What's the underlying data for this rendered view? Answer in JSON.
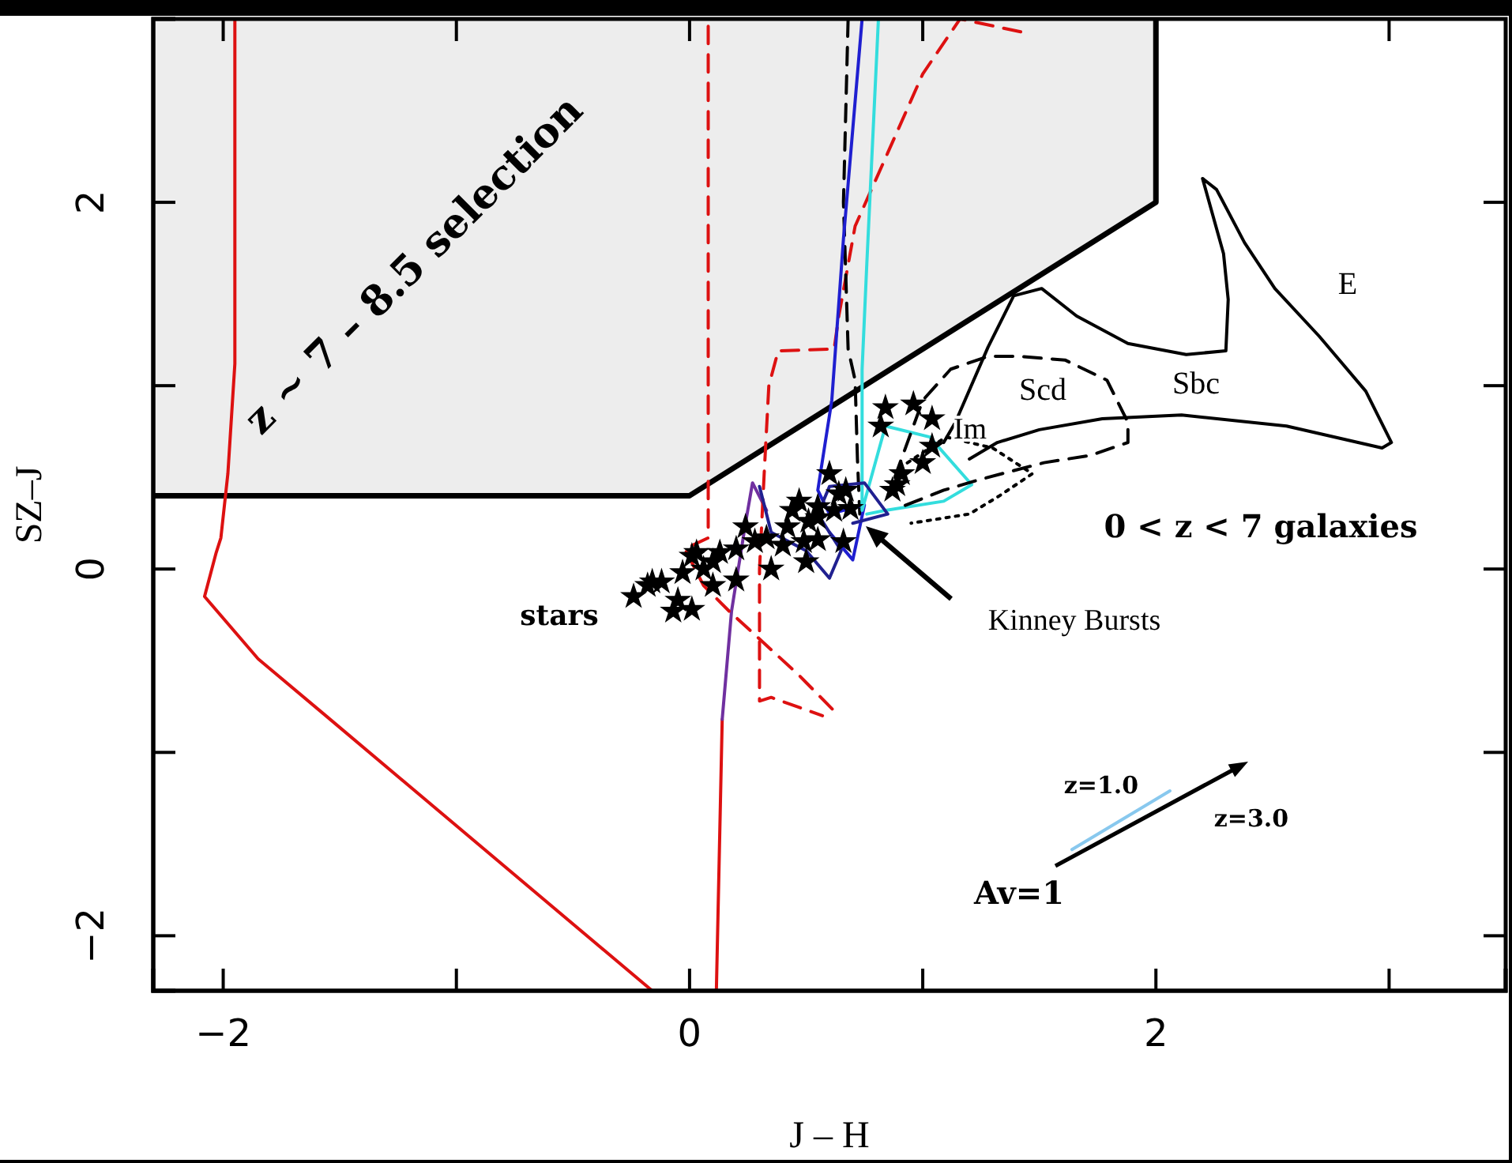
{
  "chart_data": {
    "type": "line",
    "xlabel": "J – H",
    "ylabel": "SZ–J",
    "xlim": [
      -2.3,
      3.5
    ],
    "ylim": [
      -2.3,
      3
    ],
    "xticks": [
      {
        "value": -2,
        "label": "−2"
      },
      {
        "value": -1,
        "label": null
      },
      0,
      {
        "value": 1,
        "label": null
      },
      2,
      {
        "value": 3,
        "label": null
      }
    ],
    "yticks": [
      {
        "value": -2,
        "label": "−2"
      },
      {
        "value": -1,
        "label": null
      },
      0,
      {
        "value": 1,
        "label": null
      },
      2
    ],
    "grid": false,
    "series": [
      {
        "color": "#000000",
        "x": [
          -2.3,
          0,
          2,
          2
        ],
        "values": [
          0.4,
          0.4,
          2,
          3
        ],
        "lower": [
          0.4,
          0.4,
          2,
          3
        ],
        "upper": [
          3,
          3,
          3,
          3
        ],
        "line_style": "solid",
        "marker": "none"
      },
      {
        "color": "#dd1111",
        "x": [
          -1.95,
          -1.95,
          -1.98,
          -2.01,
          -2.03,
          -2.08,
          -1.85,
          -1.56,
          -0.16
        ],
        "values": [
          3,
          1.12,
          0.52,
          0.17,
          0.09,
          -0.15,
          -0.49,
          -0.8,
          -2.3
        ],
        "line_style": "solid",
        "marker": "none"
      },
      {
        "color": "#dd1111",
        "x": [
          0.115,
          0.14
        ],
        "values": [
          -2.3,
          -0.82
        ],
        "line_style": "solid",
        "marker": "none"
      },
      {
        "color": "#7030a0",
        "x": [
          0.14,
          0.18,
          0.24,
          0.27,
          0.33
        ],
        "values": [
          -0.82,
          -0.23,
          0.25,
          0.47,
          0.32
        ],
        "line_style": "solid",
        "marker": "none"
      },
      {
        "color": "#dd1111",
        "x": [
          0.08,
          0.08,
          0.08,
          -0.02,
          0.06,
          0.17,
          0.47,
          0.64
        ],
        "values": [
          2.96,
          1.5,
          0.17,
          0.11,
          -0.09,
          -0.23,
          -0.58,
          -0.8
        ],
        "line_style": "dashed",
        "marker": "none"
      },
      {
        "color": "#dd1111",
        "x": [
          1.42,
          1.16,
          1.0,
          0.85,
          0.71,
          0.64,
          0.62,
          0.38,
          0.34,
          0.32,
          0.3,
          0.3,
          0.35,
          0.57
        ],
        "values": [
          2.93,
          3,
          2.7,
          2.27,
          1.87,
          1.38,
          1.2,
          1.19,
          1.0,
          0.52,
          0,
          -0.72,
          -0.7,
          -0.8
        ],
        "line_style": "dashed",
        "marker": "none"
      },
      {
        "color": "#000000",
        "x": [
          0.68,
          0.66,
          0.68,
          0.71,
          0.72,
          0.73
        ],
        "values": [
          3,
          2,
          1.2,
          1.03,
          0.6,
          0.3
        ],
        "line_style": "dashed",
        "marker": "none"
      },
      {
        "color": "#1f1fd0",
        "x": [
          0.74,
          0.66,
          0.61,
          0.55,
          0.6,
          0.75,
          0.7,
          0.6
        ],
        "values": [
          3,
          1.8,
          0.92,
          0.43,
          0.3,
          0.35,
          0.05,
          0.2
        ],
        "line_style": "solid",
        "marker": "none"
      },
      {
        "color": "#33dddd",
        "x": [
          0.81,
          0.76,
          0.74,
          0.74,
          0.84,
          1.03,
          1.21,
          1.09,
          0.84,
          0.76
        ],
        "values": [
          3,
          1.66,
          1.09,
          0.32,
          0.78,
          0.72,
          0.46,
          0.37,
          0.32,
          0.3
        ],
        "line_style": "solid",
        "marker": "none"
      },
      {
        "color": "#202090",
        "x": [
          0.3,
          0.35,
          0.5,
          0.6,
          0.65,
          0.55,
          0.6,
          0.75,
          0.85,
          0.7
        ],
        "values": [
          0.45,
          0.2,
          0.1,
          -0.05,
          0.1,
          0.3,
          0.45,
          0.47,
          0.3,
          0.25
        ],
        "line_style": "solid",
        "marker": "none"
      },
      {
        "color": "#000000",
        "x": [
          1.09,
          1.14,
          1.28,
          1.39,
          1.51,
          1.66,
          1.88,
          2.13,
          2.3,
          2.31,
          2.29,
          2.2,
          2.26,
          2.38,
          2.51,
          2.7,
          2.9,
          3.01,
          2.97,
          2.56,
          2.11,
          1.77,
          1.5,
          1.32,
          1.2
        ],
        "values": [
          0.69,
          0.8,
          1.21,
          1.49,
          1.53,
          1.38,
          1.23,
          1.17,
          1.19,
          1.47,
          1.72,
          2.13,
          2.07,
          1.78,
          1.53,
          1.27,
          0.97,
          0.69,
          0.66,
          0.78,
          0.84,
          0.82,
          0.76,
          0.69,
          0.6
        ],
        "line_style": "solid",
        "marker": "none"
      },
      {
        "color": "#000000",
        "x": [
          0.88,
          1.0,
          1.12,
          1.28,
          1.41,
          1.61,
          1.79,
          1.88,
          1.88,
          1.72,
          1.52,
          1.25,
          1.09,
          0.91
        ],
        "values": [
          0.5,
          0.92,
          1.09,
          1.16,
          1.16,
          1.14,
          1.03,
          0.8,
          0.69,
          0.62,
          0.58,
          0.49,
          0.43,
          0.34
        ],
        "line_style": "dashed",
        "marker": "none"
      },
      {
        "color": "#000000",
        "x": [
          0.9,
          1.1,
          1.3,
          1.47,
          1.33,
          1.2,
          0.95
        ],
        "values": [
          0.55,
          0.72,
          0.66,
          0.52,
          0.4,
          0.3,
          0.25
        ],
        "line_style": "dotted",
        "marker": "none"
      },
      {
        "color": "#88c8ee",
        "x": [
          1.64,
          2.06
        ],
        "values": [
          -1.53,
          -1.21
        ],
        "line_style": "solid",
        "marker": "none"
      },
      {
        "type": "scatter",
        "color": "#000000",
        "marker": "star",
        "x": [
          -0.24,
          -0.18,
          -0.12,
          -0.07,
          0.01,
          -0.03,
          0.06,
          0.1,
          0.13,
          0.2,
          0.2,
          0.24,
          0.28,
          0.33,
          0.35,
          0.4,
          0.44,
          0.47,
          0.51,
          0.55,
          0.5,
          0.55,
          0.64,
          0.66,
          0.69,
          0.62,
          0.91,
          0.87,
          1.0,
          0.01,
          0.1,
          -0.05,
          -0.16,
          0.03,
          0.84,
          0.96,
          1.04,
          0.82,
          1.04,
          0.89,
          0.6,
          0.67,
          0.55,
          0.49,
          0.42
        ],
        "values": [
          -0.15,
          -0.09,
          -0.07,
          -0.23,
          -0.22,
          -0.02,
          0,
          0.04,
          0.09,
          0.11,
          -0.06,
          0.23,
          0.15,
          0.17,
          0,
          0.13,
          0.32,
          0.37,
          0.26,
          0.28,
          0.04,
          0.16,
          0.41,
          0.15,
          0.33,
          0.32,
          0.52,
          0.43,
          0.58,
          0.07,
          -0.09,
          -0.17,
          -0.07,
          0.09,
          0.88,
          0.9,
          0.82,
          0.78,
          0.67,
          0.46,
          0.52,
          0.43,
          0.34,
          0.15,
          0.23
        ]
      }
    ],
    "annotations": [
      "z ~ 7 – 8.5 selection",
      "stars",
      "Kinney Bursts",
      "Im",
      "Scd",
      "Sbc",
      "E",
      "0 < z < 7 galaxies",
      "Av=1",
      "z=1.0",
      "z=3.0"
    ]
  }
}
